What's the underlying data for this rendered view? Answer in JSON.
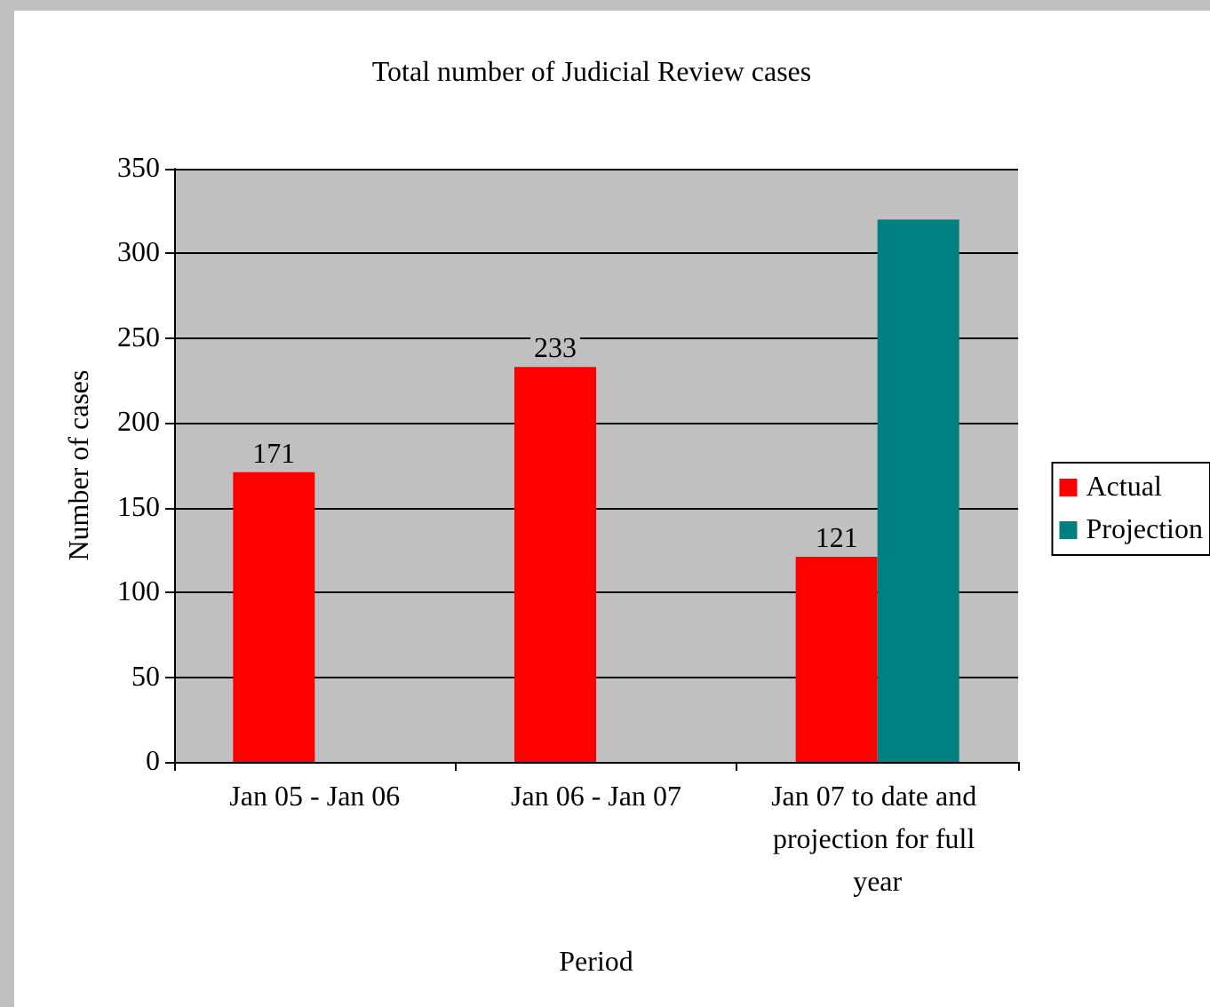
{
  "chart_data": {
    "type": "bar",
    "title": "Total number of Judicial Review cases",
    "xlabel": "Period",
    "ylabel": "Number of cases",
    "categories": [
      "Jan 05 - Jan 06",
      "Jan 06 - Jan 07",
      "Jan 07 to date and projection for full year"
    ],
    "series": [
      {
        "name": "Actual",
        "color": "#ff0000",
        "values": [
          171,
          233,
          121
        ],
        "value_labels": [
          "171",
          "233",
          "121"
        ]
      },
      {
        "name": "Projection",
        "color": "#008080",
        "values": [
          null,
          null,
          320
        ]
      }
    ],
    "ylim": [
      0,
      350
    ],
    "yticks": [
      0,
      50,
      100,
      150,
      200,
      250,
      300,
      350
    ],
    "grid": "y",
    "legend": "right"
  }
}
